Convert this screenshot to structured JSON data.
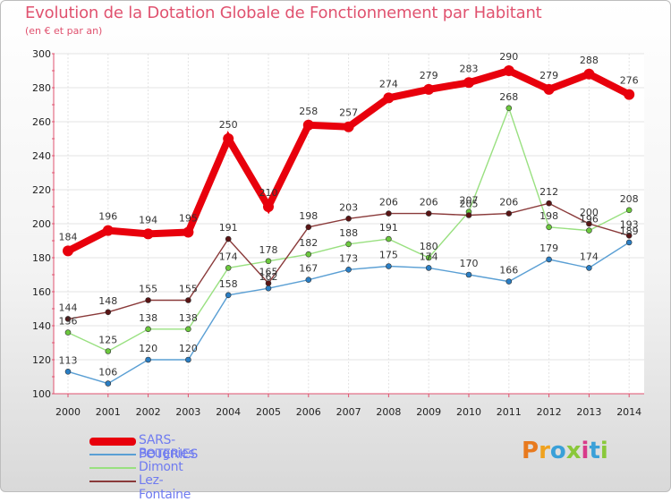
{
  "title": "Evolution de la Dotation Globale de Fonctionnement par Habitant",
  "subtitle": "(en € et par an)",
  "logo": "Proxiti",
  "chart_data": {
    "type": "line",
    "title": "Evolution de la Dotation Globale de Fonctionnement par Habitant",
    "subtitle": "(en € et par an)",
    "xlabel": "",
    "ylabel": "",
    "ylim": [
      100,
      300
    ],
    "yticks": [
      100,
      120,
      140,
      160,
      180,
      200,
      220,
      240,
      260,
      280,
      300
    ],
    "grid": true,
    "legend_position": "bottom-left",
    "x": [
      "2000",
      "2001",
      "2002",
      "2003",
      "2004",
      "2005",
      "2006",
      "2007",
      "2008",
      "2009",
      "2010",
      "2011",
      "2012",
      "2013",
      "2014"
    ],
    "series": [
      {
        "name": "Beugnies",
        "color": "#5a9fd4",
        "marker": "#2a7ec4",
        "values": [
          113,
          106,
          120,
          120,
          158,
          162,
          167,
          173,
          175,
          174,
          170,
          166,
          179,
          174,
          189
        ],
        "labels": [
          "113",
          "106",
          "120",
          "120",
          "158",
          "162",
          "167",
          "173",
          "175",
          "174",
          "170",
          "166",
          "179",
          "174",
          "189"
        ]
      },
      {
        "name": "Dimont",
        "color": "#99e080",
        "marker": "#6cc83e",
        "values": [
          136,
          125,
          138,
          138,
          174,
          178,
          182,
          188,
          191,
          180,
          207,
          268,
          198,
          196,
          208
        ],
        "labels": [
          "136",
          "125",
          "138",
          "138",
          "174",
          "178",
          "182",
          "188",
          "191",
          "180",
          "207",
          "268",
          "198",
          "196",
          "208"
        ]
      },
      {
        "name": "Lez-Fontaine",
        "color": "#8a3a3a",
        "marker": "#5a1414",
        "values": [
          144,
          148,
          155,
          155,
          191,
          165,
          198,
          203,
          206,
          206,
          205,
          206,
          212,
          200,
          193
        ],
        "labels": [
          "144",
          "148",
          "155",
          "155",
          "191",
          "165",
          "198",
          "203",
          "206",
          "206",
          "205",
          "206",
          "212",
          "200",
          "193"
        ]
      },
      {
        "name": "SARS-POTERIES",
        "color": "#e8000c",
        "marker": "#e8000c",
        "highlight": true,
        "values": [
          184,
          196,
          194,
          195,
          250,
          210,
          258,
          257,
          274,
          279,
          283,
          290,
          279,
          288,
          276
        ],
        "labels": [
          "184",
          "196",
          "194",
          "195",
          "250",
          "210",
          "258",
          "257",
          "274",
          "279",
          "283",
          "290",
          "279",
          "288",
          "276"
        ]
      }
    ]
  }
}
